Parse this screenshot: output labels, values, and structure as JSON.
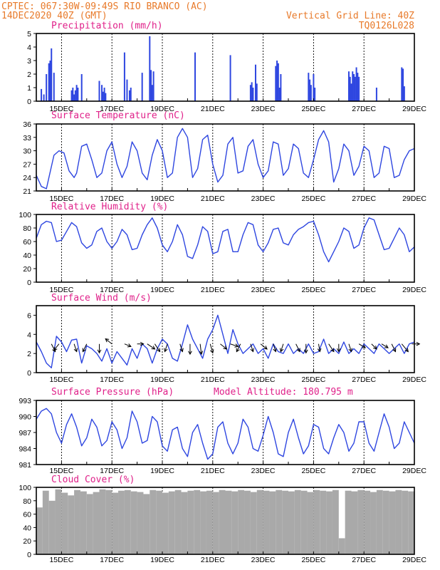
{
  "header": {
    "line1_left": "CPTEC:   067:30W-09:49S  RIO BRANCO (AC)",
    "line2_left": "14DEC2020 40Z (GMT)",
    "line1_right": "Vertical Grid Line: 40Z",
    "line2_right": "TQ0126L028"
  },
  "colors": {
    "series": "#2e46e0",
    "cloud": "#a9a9a9",
    "title": "#e0218a",
    "header": "#e87a2a"
  },
  "chart_data": [
    {
      "type": "bar",
      "title": "Precipitation (mm/h)",
      "ylim": [
        0,
        5
      ],
      "yticks": [
        0,
        1,
        2,
        3,
        4,
        5
      ],
      "x_tick_labels": [
        "15DEC",
        "17DEC",
        "19DEC",
        "21DEC",
        "23DEC",
        "25DEC",
        "27DEC",
        "29DEC"
      ],
      "x_tick_days": [
        15,
        17,
        19,
        21,
        23,
        25,
        27,
        29
      ],
      "x": [
        14.2,
        14.3,
        14.4,
        14.5,
        14.55,
        14.6,
        14.7,
        15.4,
        15.45,
        15.5,
        15.55,
        15.6,
        15.65,
        15.8,
        16.5,
        16.6,
        16.65,
        16.7,
        16.75,
        17.5,
        17.6,
        17.7,
        17.75,
        18.2,
        18.5,
        18.55,
        18.6,
        18.65,
        20.3,
        21.7,
        22.5,
        22.55,
        22.6,
        22.7,
        22.75,
        23.5,
        23.55,
        23.6,
        23.65,
        23.7,
        24.8,
        24.85,
        24.9,
        25.0,
        25.05,
        26.4,
        26.45,
        26.5,
        26.55,
        26.6,
        26.65,
        26.7,
        26.75,
        26.8,
        27.5,
        28.5,
        28.55,
        28.6
      ],
      "values": [
        0.9,
        0.5,
        2.0,
        2.8,
        3.0,
        3.9,
        2.1,
        0.8,
        1.0,
        0.5,
        0.8,
        1.2,
        1.0,
        2.0,
        1.5,
        1.2,
        0.7,
        1.0,
        0.6,
        3.6,
        1.6,
        0.8,
        1.0,
        2.1,
        4.8,
        2.3,
        1.2,
        2.2,
        3.6,
        3.4,
        1.2,
        1.4,
        1.0,
        2.7,
        1.3,
        2.6,
        3.0,
        2.8,
        1.0,
        2.0,
        2.1,
        1.6,
        1.2,
        2.0,
        1.0,
        2.2,
        1.8,
        1.3,
        2.2,
        2.0,
        1.8,
        2.5,
        2.1,
        1.8,
        1.0,
        2.5,
        2.4,
        1.1
      ]
    },
    {
      "type": "line",
      "title": "Surface Temperature (nC)",
      "ylim": [
        21,
        36
      ],
      "yticks": [
        21,
        24,
        27,
        30,
        33,
        36
      ],
      "x_tick_labels": [
        "15DEC",
        "17DEC",
        "19DEC",
        "21DEC",
        "23DEC",
        "25DEC",
        "27DEC",
        "29DEC"
      ],
      "x_tick_days": [
        15,
        17,
        19,
        21,
        23,
        25,
        27,
        29
      ],
      "x": [
        14.0,
        14.2,
        14.4,
        14.5,
        14.7,
        14.9,
        15.1,
        15.3,
        15.5,
        15.6,
        15.8,
        16.0,
        16.2,
        16.4,
        16.6,
        16.8,
        17.0,
        17.2,
        17.4,
        17.6,
        17.8,
        18.0,
        18.2,
        18.4,
        18.6,
        18.8,
        19.0,
        19.2,
        19.4,
        19.6,
        19.8,
        20.0,
        20.2,
        20.4,
        20.6,
        20.8,
        21.0,
        21.2,
        21.4,
        21.6,
        21.8,
        22.0,
        22.2,
        22.4,
        22.6,
        22.8,
        23.0,
        23.2,
        23.4,
        23.6,
        23.8,
        24.0,
        24.2,
        24.4,
        24.6,
        24.8,
        25.0,
        25.2,
        25.4,
        25.6,
        25.8,
        26.0,
        26.2,
        26.4,
        26.6,
        26.8,
        27.0,
        27.2,
        27.4,
        27.6,
        27.8,
        28.0,
        28.2,
        28.4,
        28.6,
        28.8,
        29.0
      ],
      "values": [
        24.5,
        22.0,
        21.5,
        24.0,
        29.0,
        30.0,
        29.5,
        25.5,
        24.0,
        25.0,
        31.0,
        31.5,
        28.0,
        24.0,
        25.0,
        30.0,
        32.0,
        27.0,
        24.0,
        26.5,
        32.0,
        30.0,
        25.0,
        23.5,
        29.0,
        32.5,
        30.0,
        24.0,
        25.0,
        33.0,
        35.0,
        33.0,
        24.0,
        26.0,
        32.5,
        33.5,
        27.0,
        23.0,
        24.5,
        31.5,
        33.0,
        25.0,
        25.5,
        31.0,
        32.5,
        27.0,
        24.0,
        25.5,
        32.0,
        31.5,
        24.5,
        26.0,
        31.5,
        30.5,
        25.0,
        24.0,
        28.0,
        32.5,
        34.5,
        32.0,
        23.0,
        26.0,
        31.5,
        30.0,
        24.5,
        26.5,
        31.0,
        30.0,
        24.0,
        25.0,
        31.0,
        30.5,
        24.0,
        24.5,
        28.0,
        30.0,
        30.5
      ]
    },
    {
      "type": "line",
      "title": "Relative Humidity (%)",
      "ylim": [
        0,
        100
      ],
      "yticks": [
        0,
        20,
        40,
        60,
        80,
        100
      ],
      "x_tick_labels": [
        "15DEC",
        "17DEC",
        "19DEC",
        "21DEC",
        "23DEC",
        "25DEC",
        "27DEC",
        "29DEC"
      ],
      "x_tick_days": [
        15,
        17,
        19,
        21,
        23,
        25,
        27,
        29
      ],
      "x": [
        14.0,
        14.2,
        14.4,
        14.6,
        14.8,
        15.0,
        15.2,
        15.4,
        15.6,
        15.8,
        16.0,
        16.2,
        16.4,
        16.6,
        16.8,
        17.0,
        17.2,
        17.4,
        17.6,
        17.8,
        18.0,
        18.2,
        18.4,
        18.6,
        18.8,
        19.0,
        19.2,
        19.4,
        19.6,
        19.8,
        20.0,
        20.2,
        20.4,
        20.6,
        20.8,
        21.0,
        21.2,
        21.4,
        21.6,
        21.8,
        22.0,
        22.2,
        22.4,
        22.6,
        22.8,
        23.0,
        23.2,
        23.4,
        23.6,
        23.8,
        24.0,
        24.2,
        24.4,
        24.6,
        24.8,
        25.0,
        25.2,
        25.4,
        25.6,
        25.8,
        26.0,
        26.2,
        26.4,
        26.6,
        26.8,
        27.0,
        27.2,
        27.4,
        27.6,
        27.8,
        28.0,
        28.2,
        28.4,
        28.6,
        28.8,
        29.0
      ],
      "values": [
        65,
        85,
        90,
        88,
        60,
        62,
        75,
        88,
        82,
        58,
        50,
        55,
        75,
        80,
        60,
        50,
        60,
        78,
        70,
        48,
        50,
        70,
        85,
        95,
        80,
        55,
        45,
        60,
        85,
        70,
        38,
        35,
        55,
        82,
        75,
        42,
        45,
        75,
        78,
        45,
        45,
        70,
        88,
        85,
        55,
        45,
        58,
        78,
        80,
        58,
        55,
        70,
        78,
        82,
        88,
        90,
        70,
        45,
        30,
        45,
        60,
        80,
        75,
        50,
        55,
        80,
        95,
        92,
        70,
        48,
        50,
        65,
        80,
        70,
        45,
        52
      ]
    },
    {
      "type": "line",
      "title": "Surface Wind (m/s)",
      "ylim": [
        0,
        7
      ],
      "yticks": [
        0,
        2,
        4,
        6
      ],
      "x_tick_labels": [
        "15DEC",
        "17DEC",
        "19DEC",
        "21DEC",
        "23DEC",
        "25DEC",
        "27DEC",
        "29DEC"
      ],
      "x_tick_days": [
        15,
        17,
        19,
        21,
        23,
        25,
        27,
        29
      ],
      "x": [
        14.0,
        14.2,
        14.4,
        14.6,
        14.8,
        15.0,
        15.2,
        15.4,
        15.6,
        15.8,
        16.0,
        16.2,
        16.4,
        16.6,
        16.8,
        17.0,
        17.2,
        17.4,
        17.6,
        17.8,
        18.0,
        18.2,
        18.4,
        18.6,
        18.8,
        19.0,
        19.2,
        19.4,
        19.6,
        19.8,
        20.0,
        20.2,
        20.4,
        20.6,
        20.8,
        21.0,
        21.2,
        21.4,
        21.6,
        21.8,
        22.0,
        22.2,
        22.4,
        22.6,
        22.8,
        23.0,
        23.2,
        23.4,
        23.6,
        23.8,
        24.0,
        24.2,
        24.4,
        24.6,
        24.8,
        25.0,
        25.2,
        25.4,
        25.6,
        25.8,
        26.0,
        26.2,
        26.4,
        26.6,
        26.8,
        27.0,
        27.2,
        27.4,
        27.6,
        27.8,
        28.0,
        28.2,
        28.4,
        28.6,
        28.8,
        29.0
      ],
      "values": [
        3.2,
        2.2,
        1.0,
        0.5,
        3.8,
        3.2,
        2.2,
        3.4,
        3.5,
        1.0,
        2.8,
        2.5,
        2.0,
        1.2,
        2.5,
        1.0,
        2.2,
        1.5,
        0.8,
        2.5,
        1.5,
        3.0,
        2.5,
        1.0,
        2.5,
        3.5,
        3.0,
        1.5,
        1.2,
        3.0,
        5.0,
        3.5,
        2.5,
        1.5,
        3.5,
        4.5,
        6.0,
        4.0,
        2.0,
        4.5,
        3.0,
        2.0,
        2.5,
        3.0,
        2.0,
        2.5,
        1.5,
        3.0,
        2.2,
        2.0,
        3.0,
        2.0,
        2.5,
        2.0,
        3.0,
        2.0,
        2.2,
        3.5,
        2.0,
        2.5,
        2.0,
        3.2,
        2.0,
        2.5,
        2.0,
        3.0,
        2.5,
        2.0,
        3.0,
        2.5,
        2.0,
        2.5,
        3.0,
        2.0,
        3.0,
        3.2
      ],
      "vectors": {
        "x": [
          14.6,
          14.9,
          15.5,
          16.0,
          16.5,
          17.0,
          17.5,
          18.0,
          18.4,
          18.7,
          19.2,
          19.7,
          20.1,
          20.5,
          20.9,
          21.3,
          21.7,
          22.1,
          22.5,
          22.9,
          23.4,
          23.8,
          24.3,
          24.7,
          25.2,
          25.6,
          26.0,
          26.4,
          26.8,
          27.3,
          27.7,
          28.1,
          28.5,
          28.9
        ],
        "u": [
          0.3,
          -0.4,
          0.2,
          -0.3,
          0.0,
          -0.5,
          0.5,
          0.5,
          0.6,
          0.4,
          -0.2,
          0.2,
          0.0,
          0.1,
          0.2,
          0.5,
          0.6,
          -0.3,
          0.2,
          0.5,
          0.2,
          -0.2,
          0.3,
          0.0,
          0.1,
          0.4,
          0.0,
          0.2,
          0.5,
          0.4,
          0.5,
          0.3,
          0.5,
          0.6
        ],
        "v": [
          -0.6,
          -0.5,
          -0.6,
          -0.6,
          -0.7,
          0.4,
          -0.2,
          0.0,
          -0.4,
          -0.6,
          -0.6,
          -0.6,
          -0.8,
          -0.8,
          -0.7,
          -0.4,
          -0.2,
          -0.6,
          -0.6,
          -0.4,
          -0.6,
          -0.6,
          -0.6,
          -0.7,
          -0.6,
          -0.6,
          -0.6,
          -0.6,
          -0.3,
          -0.4,
          -0.3,
          -0.6,
          -0.6,
          0.0
        ]
      }
    },
    {
      "type": "line",
      "title": "Surface Pressure (hPa)",
      "subtitle": "Model Altitude: 180.795 m",
      "ylim": [
        981,
        993
      ],
      "yticks": [
        981,
        984,
        987,
        990,
        993
      ],
      "x_tick_labels": [
        "15DEC",
        "17DEC",
        "19DEC",
        "21DEC",
        "23DEC",
        "25DEC",
        "27DEC",
        "29DEC"
      ],
      "x_tick_days": [
        15,
        17,
        19,
        21,
        23,
        25,
        27,
        29
      ],
      "x": [
        14.0,
        14.2,
        14.4,
        14.6,
        14.8,
        15.0,
        15.2,
        15.4,
        15.6,
        15.8,
        16.0,
        16.2,
        16.4,
        16.6,
        16.8,
        17.0,
        17.2,
        17.4,
        17.6,
        17.8,
        18.0,
        18.2,
        18.4,
        18.6,
        18.8,
        19.0,
        19.2,
        19.4,
        19.6,
        19.8,
        20.0,
        20.2,
        20.4,
        20.6,
        20.8,
        21.0,
        21.2,
        21.4,
        21.6,
        21.8,
        22.0,
        22.2,
        22.4,
        22.6,
        22.8,
        23.0,
        23.2,
        23.4,
        23.6,
        23.8,
        24.0,
        24.2,
        24.4,
        24.6,
        24.8,
        25.0,
        25.2,
        25.4,
        25.6,
        25.8,
        26.0,
        26.2,
        26.4,
        26.6,
        26.8,
        27.0,
        27.2,
        27.4,
        27.6,
        27.8,
        28.0,
        28.2,
        28.4,
        28.6,
        28.8,
        29.0
      ],
      "values": [
        989.5,
        991.0,
        991.5,
        990.5,
        987.0,
        985.0,
        988.5,
        990.5,
        988.0,
        984.5,
        986.0,
        989.5,
        988.0,
        984.5,
        985.5,
        989.0,
        987.5,
        984.0,
        986.0,
        991.0,
        989.0,
        985.0,
        985.5,
        990.0,
        989.0,
        984.5,
        983.5,
        987.5,
        988.0,
        984.0,
        982.5,
        987.0,
        988.5,
        985.0,
        982.0,
        983.0,
        988.0,
        989.0,
        985.0,
        983.0,
        985.0,
        989.5,
        988.0,
        984.0,
        983.5,
        986.5,
        990.0,
        987.0,
        983.0,
        982.5,
        987.0,
        989.5,
        986.0,
        983.0,
        984.5,
        988.5,
        988.0,
        984.0,
        983.0,
        986.0,
        988.5,
        987.0,
        983.5,
        985.0,
        989.0,
        989.0,
        985.0,
        983.5,
        987.0,
        990.5,
        988.0,
        984.0,
        985.0,
        989.0,
        987.0,
        985.0
      ]
    },
    {
      "type": "bar",
      "title": "Cloud Cover (%)",
      "ylim": [
        0,
        100
      ],
      "yticks": [
        0,
        20,
        40,
        60,
        80,
        100
      ],
      "x_tick_labels": [
        "15DEC",
        "17DEC",
        "19DEC",
        "21DEC",
        "23DEC",
        "25DEC",
        "27DEC",
        "29DEC"
      ],
      "x_tick_days": [
        15,
        17,
        19,
        21,
        23,
        25,
        27,
        29
      ],
      "x": [
        14.0,
        14.25,
        14.5,
        14.75,
        15.0,
        15.25,
        15.5,
        15.75,
        16.0,
        16.25,
        16.5,
        16.75,
        17.0,
        17.25,
        17.5,
        17.75,
        18.0,
        18.25,
        18.5,
        18.75,
        19.0,
        19.25,
        19.5,
        19.75,
        20.0,
        20.25,
        20.5,
        20.75,
        21.0,
        21.25,
        21.5,
        21.75,
        22.0,
        22.25,
        22.5,
        22.75,
        23.0,
        23.25,
        23.5,
        23.75,
        24.0,
        24.25,
        24.5,
        24.75,
        25.0,
        25.25,
        25.5,
        25.75,
        26.0,
        26.25,
        26.5,
        26.75,
        27.0,
        27.25,
        27.5,
        27.75,
        28.0,
        28.25,
        28.5,
        28.75
      ],
      "values": [
        70,
        95,
        80,
        97,
        92,
        88,
        96,
        94,
        90,
        93,
        97,
        96,
        92,
        95,
        96,
        94,
        93,
        90,
        96,
        95,
        92,
        94,
        96,
        93,
        95,
        96,
        94,
        95,
        93,
        96,
        95,
        94,
        96,
        95,
        93,
        96,
        95,
        94,
        96,
        95,
        94,
        96,
        95,
        93,
        96,
        95,
        94,
        96,
        24,
        95,
        94,
        96,
        95,
        93,
        96,
        95,
        94,
        96,
        95,
        94
      ]
    }
  ]
}
